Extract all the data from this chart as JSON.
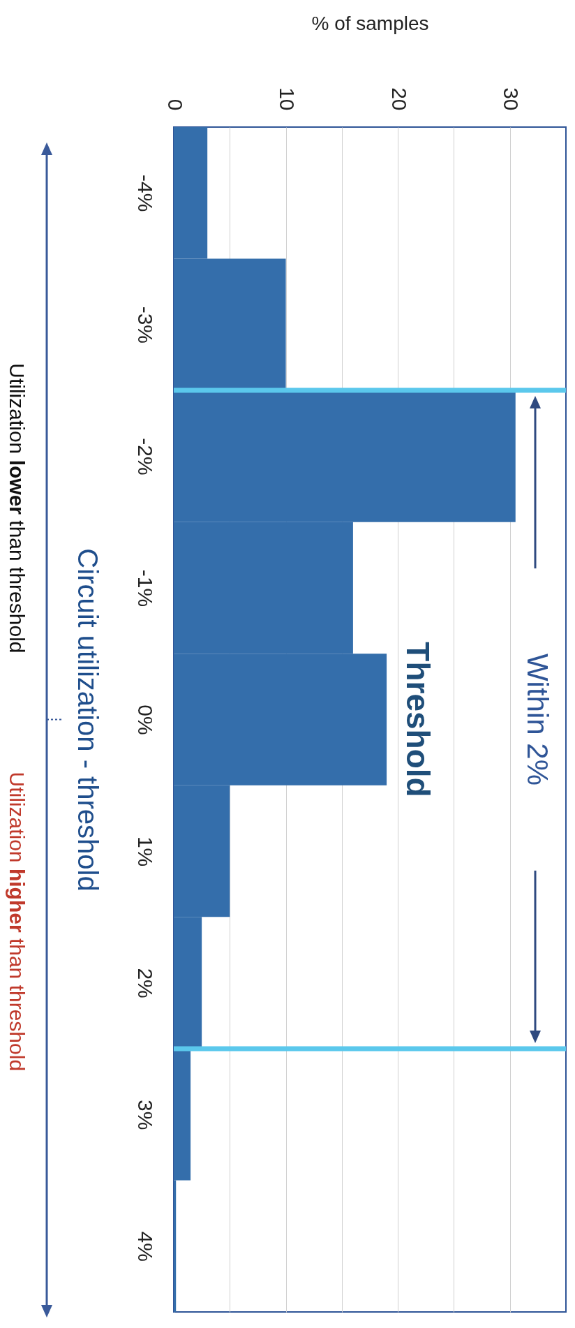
{
  "chart_data": {
    "type": "histogram",
    "orientation": "horizontal",
    "xlabel": "% of samples",
    "ylabel": "Circuit utilization - threshold",
    "bins": [
      -4.5,
      -3.5,
      -2.5,
      -1.5,
      -0.5,
      0.5,
      1.5,
      2.5,
      3.5,
      4.5
    ],
    "values": [
      3,
      10,
      30.5,
      16,
      19,
      5,
      2.5,
      1.5,
      0.2
    ],
    "color": "#346eab",
    "xlim": [
      0,
      35
    ],
    "xticks": [
      0,
      {
        "value": 5,
        "label": null
      },
      10,
      {
        "value": 15,
        "label": null
      },
      20,
      {
        "value": 25,
        "label": null
      },
      30
    ],
    "ylim": [
      4.5,
      -4.5
    ],
    "yticks": [
      {
        "value": -4,
        "label": "-4%"
      },
      {
        "value": -3,
        "label": "-3%"
      },
      {
        "value": -2,
        "label": "-2%"
      },
      {
        "value": -1,
        "label": "-1%"
      },
      {
        "value": 0,
        "label": "0%"
      },
      {
        "value": 1,
        "label": "1%"
      },
      {
        "value": 2,
        "label": "2%"
      },
      {
        "value": 3,
        "label": "3%"
      },
      {
        "value": 4,
        "label": "4%"
      }
    ],
    "grid": "x",
    "ref_lines": [
      {
        "axis": "y",
        "value": -2.5,
        "color": "#5bc8ec"
      },
      {
        "axis": "y",
        "value": 2.5,
        "color": "#5bc8ec"
      }
    ],
    "annotations": [
      "Within 2%",
      "Threshold",
      "Utilization lower than threshold",
      "Utilization higher than threshold"
    ]
  }
}
